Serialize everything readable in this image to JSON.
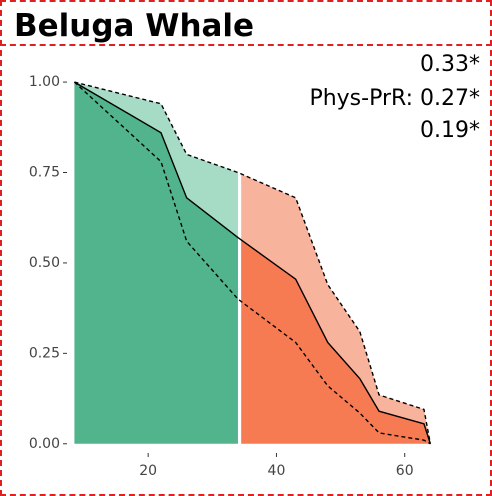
{
  "title": "Beluga Whale",
  "annotations": {
    "line1": "0.33*",
    "line2": "Phys-PrR: 0.27*",
    "line3": "0.19*"
  },
  "colors": {
    "green_fill": "#52b48c",
    "green_band": "#a6dbc6",
    "orange_fill": "#f77b52",
    "orange_band": "#f8b39c",
    "border": "#e02020"
  },
  "chart_data": {
    "type": "area",
    "title": "Beluga Whale",
    "xlabel": "",
    "ylabel": "",
    "xlim": [
      7.5,
      65.5
    ],
    "ylim": [
      -0.02,
      1.05
    ],
    "x_ticks": [
      20,
      40,
      60
    ],
    "x_tick_labels": [
      "20",
      "40",
      "60"
    ],
    "y_ticks": [
      0.0,
      0.25,
      0.5,
      0.75,
      1.0
    ],
    "y_tick_labels": [
      "0.00",
      "0.25",
      "0.50",
      "0.75",
      "1.00"
    ],
    "grid": false,
    "split_x": [
      34,
      34.5
    ],
    "series": [
      {
        "x": [
          8.5,
          22,
          26,
          34,
          43,
          48,
          53,
          56,
          63,
          64
        ],
        "values": [
          1.0,
          0.86,
          0.68,
          0.57,
          0.455,
          0.28,
          0.18,
          0.09,
          0.055,
          0.0
        ]
      },
      {
        "x": [
          8.5,
          22,
          26,
          34,
          43,
          48,
          53,
          56,
          63,
          64
        ],
        "values": [
          1.0,
          0.94,
          0.8,
          0.75,
          0.68,
          0.44,
          0.31,
          0.135,
          0.095,
          0.0
        ]
      },
      {
        "x": [
          8.5,
          22,
          26,
          34,
          43,
          48,
          53,
          56,
          63,
          64
        ],
        "values": [
          1.0,
          0.78,
          0.56,
          0.4,
          0.28,
          0.16,
          0.085,
          0.03,
          0.01,
          0.0
        ]
      }
    ]
  }
}
